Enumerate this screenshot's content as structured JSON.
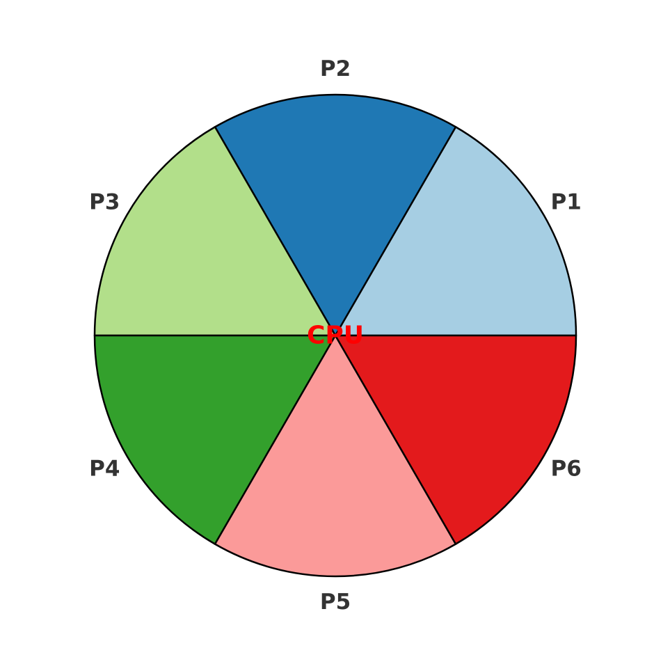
{
  "chart_data": {
    "type": "pie",
    "title": "",
    "center_label": "CPU",
    "center_label_color": "#ff0000",
    "start_angle_deg": 0,
    "direction": "counterclockwise",
    "slices": [
      {
        "label": "P1",
        "value": 1,
        "color": "#a6cee3"
      },
      {
        "label": "P2",
        "value": 1,
        "color": "#1f78b4"
      },
      {
        "label": "P3",
        "value": 1,
        "color": "#b2df8a"
      },
      {
        "label": "P4",
        "value": 1,
        "color": "#33a02c"
      },
      {
        "label": "P5",
        "value": 1,
        "color": "#fb9a99"
      },
      {
        "label": "P6",
        "value": 1,
        "color": "#e31a1c"
      }
    ],
    "edge_color": "#000000",
    "label_color": "#333333"
  }
}
